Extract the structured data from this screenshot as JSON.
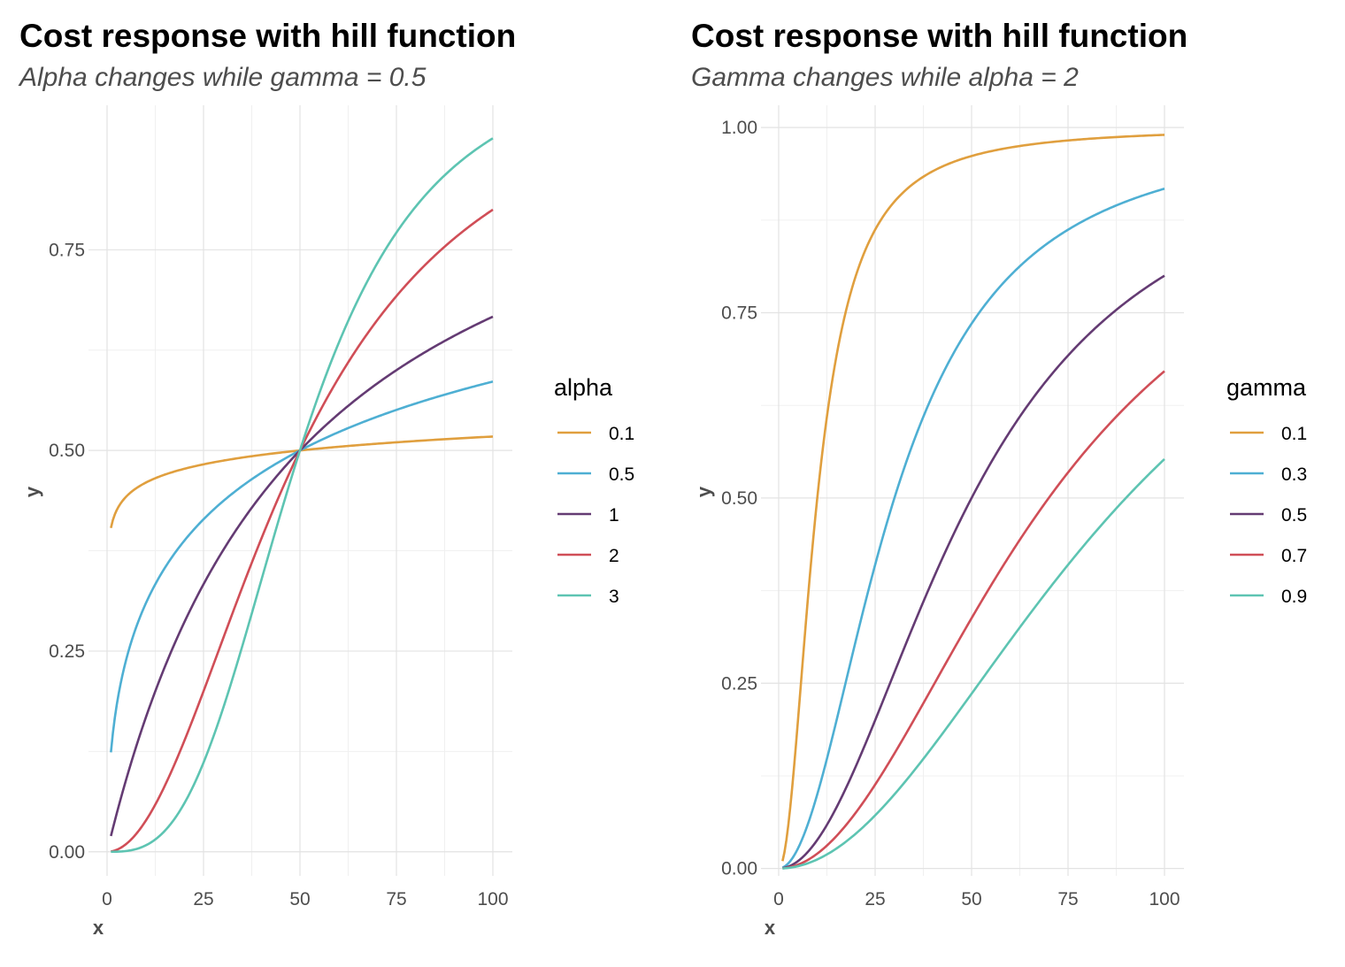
{
  "chart_data": [
    {
      "type": "line",
      "title": "Cost response with hill function",
      "subtitle": "Alpha changes while gamma = 0.5",
      "xlabel": "x",
      "ylabel": "y",
      "xlim": [
        1,
        100
      ],
      "ylim": [
        -0.03,
        0.93
      ],
      "xticks": [
        0,
        25,
        50,
        75,
        100
      ],
      "yticks": [
        0,
        0.25,
        0.5,
        0.75
      ],
      "ytick_labels": [
        "0.00",
        "0.25",
        "0.50",
        "0.75"
      ],
      "grid": true,
      "legend_position": "right",
      "legend_title": "alpha",
      "varied_param": "alpha",
      "fixed": {
        "gamma": 0.5
      },
      "x_range": [
        1,
        100
      ],
      "series": [
        {
          "name": "0.1",
          "color": "#E09F3E",
          "alpha": 0.1,
          "gamma": 0.5
        },
        {
          "name": "0.5",
          "color": "#4EAFD3",
          "alpha": 0.5,
          "gamma": 0.5
        },
        {
          "name": "1",
          "color": "#643B73",
          "alpha": 1,
          "gamma": 0.5
        },
        {
          "name": "2",
          "color": "#D04E57",
          "alpha": 2,
          "gamma": 0.5
        },
        {
          "name": "3",
          "color": "#5DC4B2",
          "alpha": 3,
          "gamma": 0.5
        }
      ]
    },
    {
      "type": "line",
      "title": "Cost response with hill function",
      "subtitle": "Gamma changes while alpha = 2",
      "xlabel": "x",
      "ylabel": "y",
      "xlim": [
        1,
        100
      ],
      "ylim": [
        -0.01,
        1.03
      ],
      "xticks": [
        0,
        25,
        50,
        75,
        100
      ],
      "yticks": [
        0,
        0.25,
        0.5,
        0.75,
        1.0
      ],
      "ytick_labels": [
        "0.00",
        "0.25",
        "0.50",
        "0.75",
        "1.00"
      ],
      "grid": true,
      "legend_position": "right",
      "legend_title": "gamma",
      "varied_param": "gamma",
      "fixed": {
        "alpha": 2
      },
      "x_range": [
        1,
        100
      ],
      "series": [
        {
          "name": "0.1",
          "color": "#E09F3E",
          "alpha": 2,
          "gamma": 0.1
        },
        {
          "name": "0.3",
          "color": "#4EAFD3",
          "alpha": 2,
          "gamma": 0.3
        },
        {
          "name": "0.5",
          "color": "#643B73",
          "alpha": 2,
          "gamma": 0.5
        },
        {
          "name": "0.7",
          "color": "#D04E57",
          "alpha": 2,
          "gamma": 0.7
        },
        {
          "name": "0.9",
          "color": "#5DC4B2",
          "alpha": 2,
          "gamma": 0.9
        }
      ]
    }
  ]
}
